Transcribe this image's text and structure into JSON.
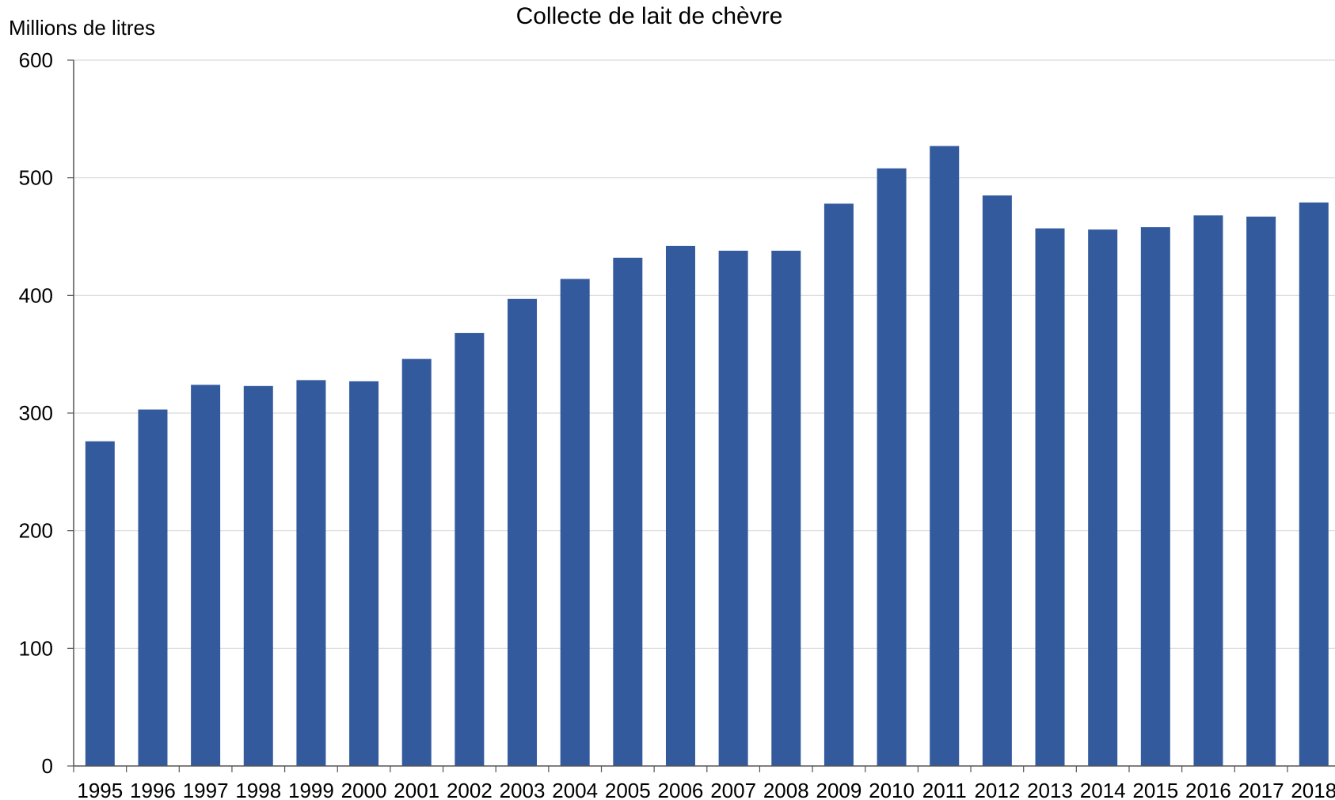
{
  "chart_data": {
    "type": "bar",
    "title": "Collecte de lait de chèvre",
    "ylabel": "Millions de litres",
    "xlabel": "",
    "categories": [
      "1995",
      "1996",
      "1997",
      "1998",
      "1999",
      "2000",
      "2001",
      "2002",
      "2003",
      "2004",
      "2005",
      "2006",
      "2007",
      "2008",
      "2009",
      "2010",
      "2011",
      "2012",
      "2013",
      "2014",
      "2015",
      "2016",
      "2017",
      "2018"
    ],
    "values": [
      276,
      303,
      324,
      323,
      328,
      327,
      346,
      368,
      397,
      414,
      432,
      442,
      438,
      438,
      478,
      508,
      527,
      485,
      457,
      456,
      458,
      468,
      467,
      479
    ],
    "ylim": [
      0,
      600
    ],
    "yticks": [
      0,
      100,
      200,
      300,
      400,
      500,
      600
    ],
    "grid": true,
    "bar_color": "#345a9e",
    "grid_color": "#d9d9d9"
  }
}
